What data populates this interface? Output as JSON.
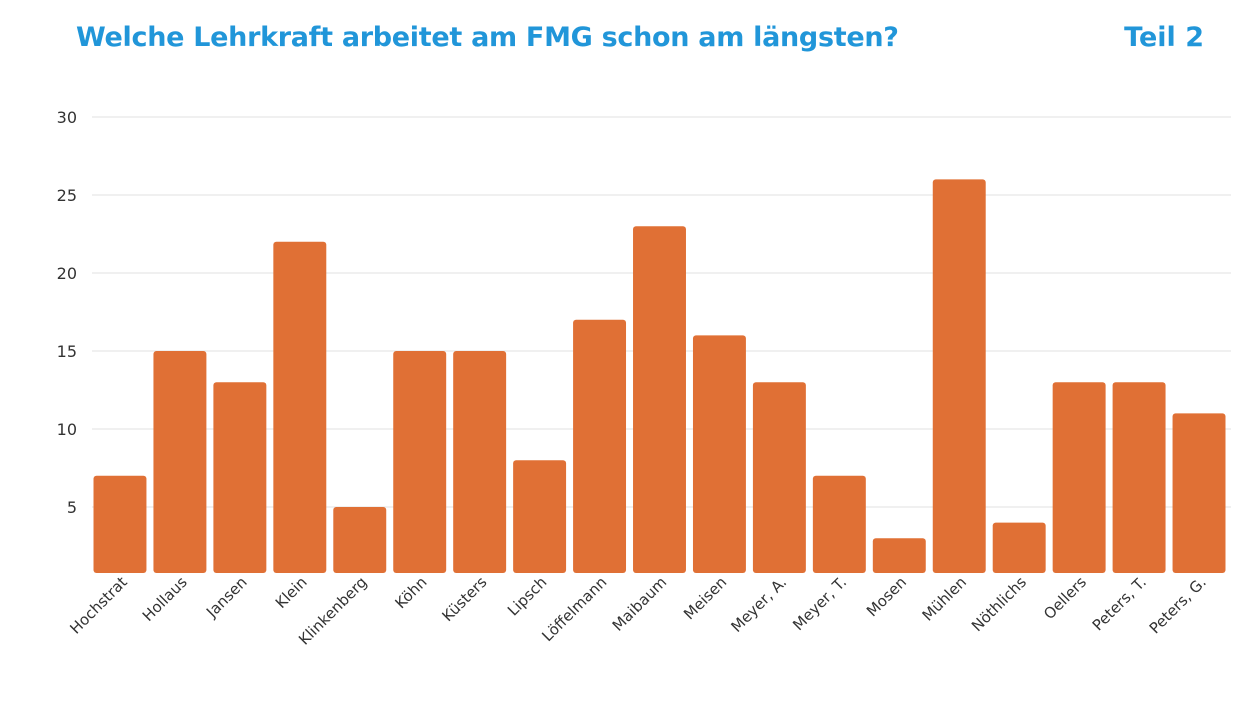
{
  "header": {
    "title": "Welche Lehrkraft arbeitet am FMG schon am längsten?",
    "part": "Teil 2"
  },
  "colors": {
    "title": "#2196d9",
    "bar": "#e07035",
    "grid": "#e2e2e2"
  },
  "chart_data": {
    "type": "bar",
    "categories": [
      "Hochstrat",
      "Hollaus",
      "Jansen",
      "Klein",
      "Klinkenberg",
      "Köhn",
      "Küsters",
      "Lipsch",
      "Löffelmann",
      "Maibaum",
      "Meisen",
      "Meyer, A.",
      "Meyer, T.",
      "Mosen",
      "Mühlen",
      "Nöthlichs",
      "Oellers",
      "Peters, T.",
      "Peters, G."
    ],
    "values": [
      7,
      15,
      13,
      22,
      5,
      15,
      15,
      8,
      17,
      23,
      16,
      13,
      7,
      3,
      26,
      4,
      13,
      13,
      11
    ],
    "yticks": [
      "5",
      "10",
      "15",
      "20",
      "25",
      "30"
    ],
    "ylim": [
      1,
      30
    ],
    "grid": true,
    "legend": "none"
  }
}
